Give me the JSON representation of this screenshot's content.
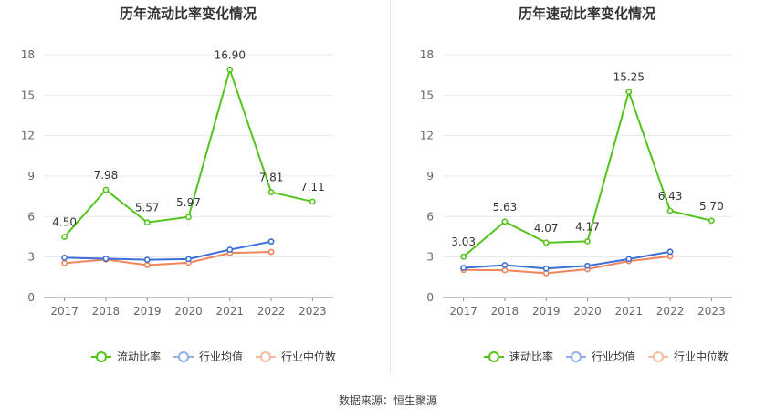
{
  "source_text": "数据来源：恒生聚源",
  "chart_data": [
    {
      "type": "line",
      "title": "历年流动比率变化情况",
      "xlabel": "",
      "ylabel": "",
      "categories": [
        "2017",
        "2018",
        "2019",
        "2020",
        "2021",
        "2022",
        "2023"
      ],
      "ylim": [
        0,
        18
      ],
      "yticks": [
        0,
        3,
        6,
        9,
        12,
        15,
        18
      ],
      "grid": true,
      "legend_position": "bottom",
      "series": [
        {
          "name": "流动比率",
          "color": "#52c41a",
          "values": [
            4.5,
            7.98,
            5.57,
            5.97,
            16.9,
            7.81,
            7.11
          ],
          "labels": [
            "4.50",
            "7.98",
            "5.57",
            "5.97",
            "16.90",
            "7.81",
            "7.11"
          ],
          "legend_color": "#52c41a"
        },
        {
          "name": "行业均值",
          "color": "#3b6fd6",
          "values": [
            2.95,
            2.88,
            2.8,
            2.85,
            3.55,
            4.15,
            null
          ],
          "legend_color": "#8fb0ea"
        },
        {
          "name": "行业中位数",
          "color": "#f0845a",
          "values": [
            2.55,
            2.82,
            2.4,
            2.58,
            3.3,
            3.38,
            null
          ],
          "legend_color": "#f7b99f"
        }
      ]
    },
    {
      "type": "line",
      "title": "历年速动比率变化情况",
      "xlabel": "",
      "ylabel": "",
      "categories": [
        "2017",
        "2018",
        "2019",
        "2020",
        "2021",
        "2022",
        "2023"
      ],
      "ylim": [
        0,
        18
      ],
      "yticks": [
        0,
        3,
        6,
        9,
        12,
        15,
        18
      ],
      "grid": true,
      "legend_position": "bottom",
      "series": [
        {
          "name": "速动比率",
          "color": "#52c41a",
          "values": [
            3.03,
            5.63,
            4.07,
            4.17,
            15.25,
            6.43,
            5.7
          ],
          "labels": [
            "3.03",
            "5.63",
            "4.07",
            "4.17",
            "15.25",
            "6.43",
            "5.70"
          ],
          "legend_color": "#52c41a"
        },
        {
          "name": "行业均值",
          "color": "#3b6fd6",
          "values": [
            2.2,
            2.4,
            2.15,
            2.35,
            2.85,
            3.4,
            null
          ],
          "legend_color": "#8fb0ea"
        },
        {
          "name": "行业中位数",
          "color": "#f0845a",
          "values": [
            2.05,
            2.02,
            1.8,
            2.1,
            2.7,
            3.05,
            null
          ],
          "legend_color": "#f7b99f"
        }
      ]
    }
  ]
}
